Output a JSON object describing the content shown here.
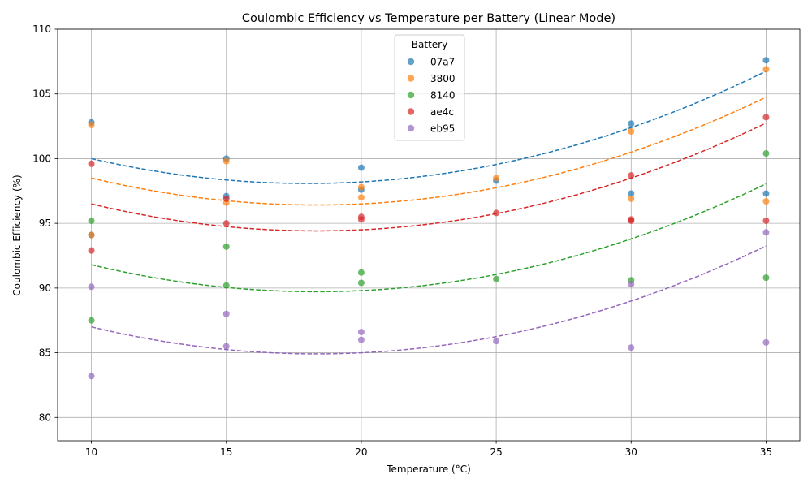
{
  "chart_data": {
    "type": "scatter",
    "title": "Coulombic Efficiency vs Temperature per Battery (Linear Mode)",
    "xlabel": "Temperature (°C)",
    "ylabel": "Coulombic Efficiency (%)",
    "xlim": [
      8.75,
      36.25
    ],
    "ylim": [
      78.2,
      110
    ],
    "xticks": [
      10,
      15,
      20,
      25,
      30,
      35
    ],
    "yticks": [
      80,
      85,
      90,
      95,
      100,
      105,
      110
    ],
    "grid": true,
    "legend": {
      "title": "Battery",
      "placement": "top-center"
    },
    "series": [
      {
        "name": "07a7",
        "color": "#1f77b4",
        "points": [
          [
            10,
            102.8
          ],
          [
            10,
            94.1
          ],
          [
            15,
            100.0
          ],
          [
            15,
            97.1
          ],
          [
            20,
            99.3
          ],
          [
            20,
            97.6
          ],
          [
            25,
            98.3
          ],
          [
            30,
            102.7
          ],
          [
            30,
            97.3
          ],
          [
            35,
            107.6
          ],
          [
            35,
            97.3
          ]
        ],
        "fit": [
          0.03,
          -1.08,
          107.8
        ]
      },
      {
        "name": "3800",
        "color": "#ff7f0e",
        "points": [
          [
            10,
            102.6
          ],
          [
            10,
            94.1
          ],
          [
            15,
            99.8
          ],
          [
            15,
            96.6
          ],
          [
            20,
            97.8
          ],
          [
            20,
            97.0
          ],
          [
            25,
            98.5
          ],
          [
            30,
            102.1
          ],
          [
            30,
            96.9
          ],
          [
            35,
            106.9
          ],
          [
            35,
            96.7
          ]
        ],
        "fit": [
          0.03,
          -1.1,
          106.5
        ]
      },
      {
        "name": "8140",
        "color": "#2ca02c",
        "points": [
          [
            10,
            95.2
          ],
          [
            10,
            87.5
          ],
          [
            15,
            93.2
          ],
          [
            15,
            90.2
          ],
          [
            20,
            91.2
          ],
          [
            20,
            90.4
          ],
          [
            25,
            90.7
          ],
          [
            30,
            90.6
          ],
          [
            35,
            100.4
          ],
          [
            35,
            90.8
          ]
        ],
        "fit": [
          0.03,
          -1.1,
          99.8
        ]
      },
      {
        "name": "ae4c",
        "color": "#d62728",
        "points": [
          [
            10,
            99.6
          ],
          [
            10,
            92.9
          ],
          [
            15,
            96.9
          ],
          [
            15,
            95.0
          ],
          [
            20,
            95.5
          ],
          [
            20,
            95.3
          ],
          [
            25,
            95.8
          ],
          [
            30,
            98.7
          ],
          [
            30,
            95.3
          ],
          [
            30,
            95.2
          ],
          [
            35,
            103.2
          ],
          [
            35,
            95.2
          ]
        ],
        "fit": [
          0.03,
          -1.1,
          104.5
        ]
      },
      {
        "name": "eb95",
        "color": "#9467bd",
        "points": [
          [
            10,
            90.1
          ],
          [
            10,
            83.2
          ],
          [
            15,
            88.0
          ],
          [
            15,
            85.5
          ],
          [
            20,
            86.6
          ],
          [
            20,
            86.0
          ],
          [
            25,
            85.9
          ],
          [
            30,
            90.3
          ],
          [
            30,
            85.4
          ],
          [
            35,
            94.3
          ],
          [
            35,
            85.8
          ]
        ],
        "fit": [
          0.03,
          -1.1,
          95.0
        ]
      }
    ]
  }
}
